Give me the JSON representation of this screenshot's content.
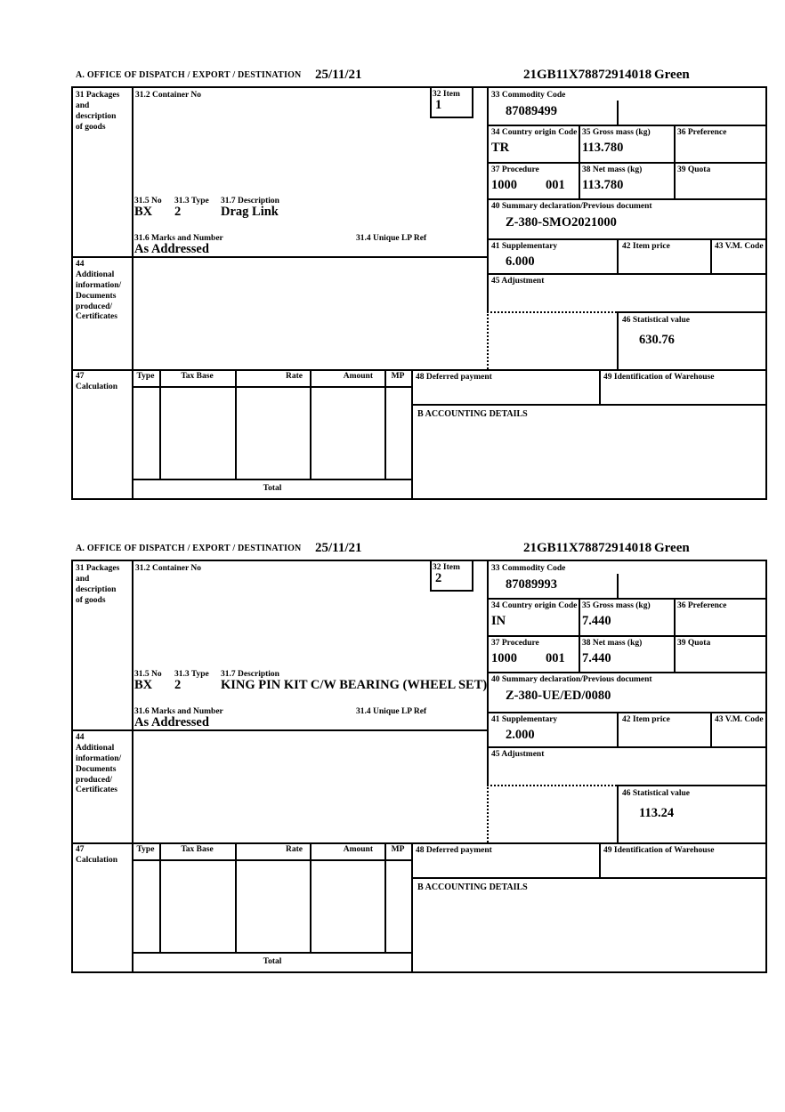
{
  "header": {
    "office_label": "A.  OFFICE OF DISPATCH / EXPORT / DESTINATION",
    "date": "25/11/21",
    "mrn": "21GB11X78872914018",
    "routing": "Green"
  },
  "labels": {
    "box31": "31 Packages\nand\ndescription\nof goods",
    "box31_2": "31.2 Container No",
    "box32": "32 Item",
    "box33": "33 Commodity Code",
    "box34": "34 Country origin Code",
    "box35": "35 Gross mass (kg)",
    "box36": "36 Preference",
    "box37": "37 Procedure",
    "box38": "38 Net mass (kg)",
    "box39": "39 Quota",
    "box40": "40 Summary declaration/Previous document",
    "box41": "41 Supplementary",
    "box42": "42 Item price",
    "box43": "43 V.M. Code",
    "box44": "44\nAdditional\ninformation/\nDocuments\nproduced/\nCertificates",
    "box45": "45 Adjustment",
    "box46": "46 Statistical value",
    "box47": "47\nCalculation",
    "box48": "48 Deferred payment",
    "box49": "49 Identification of Warehouse",
    "box31_5": "31.5 No",
    "box31_3": "31.3 Type",
    "box31_7": "31.7 Description",
    "box31_6": "31.6 Marks and Number",
    "box31_4": "31.4 Unique LP Ref",
    "accounting": "B ACCOUNTING DETAILS",
    "total": "Total",
    "table_headers": {
      "type": "Type",
      "tax_base": "Tax Base",
      "rate": "Rate",
      "amount": "Amount",
      "mp": "MP"
    }
  },
  "items": [
    {
      "item_no": "1",
      "commodity_code": "87089499",
      "country_origin": "TR",
      "gross_mass": "113.780",
      "procedure": "1000",
      "procedure_additional": "001",
      "net_mass": "113.780",
      "summary_declaration": "Z-380-SMO2021000",
      "supplementary": "6.000",
      "statistical_value": "630.76",
      "package_no": "BX",
      "package_type": "2",
      "description": "Drag Link",
      "marks": "As Addressed"
    },
    {
      "item_no": "2",
      "commodity_code": "87089993",
      "country_origin": "IN",
      "gross_mass": "7.440",
      "procedure": "1000",
      "procedure_additional": "001",
      "net_mass": "7.440",
      "summary_declaration": "Z-380-UE/ED/0080",
      "supplementary": "2.000",
      "statistical_value": "113.24",
      "package_no": "BX",
      "package_type": "2",
      "description": "KING PIN KIT C/W BEARING (WHEEL SET)",
      "marks": "As Addressed"
    }
  ]
}
